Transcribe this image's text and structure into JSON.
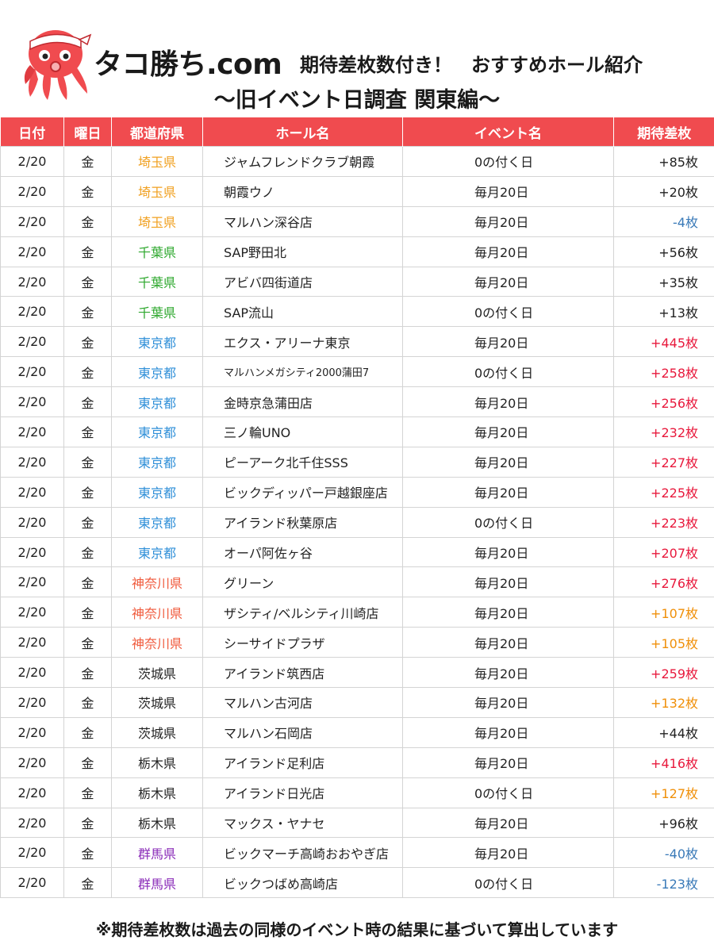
{
  "colors": {
    "header_bg": "#f04b4f",
    "pref_saitama": "#f0a020",
    "pref_chiba": "#2ea82e",
    "pref_tokyo": "#2f8fd8",
    "pref_kanagawa": "#f05a3c",
    "pref_default": "#222222",
    "pref_gunma": "#8a2bb8",
    "value_high": "#e8193c",
    "value_mid": "#f0900a",
    "value_normal": "#222222",
    "value_negative": "#3a7ab8"
  },
  "header": {
    "brand": "タコ勝ち.com",
    "headline": "期待差枚数付き！　おすすめホール紹介",
    "subtitle": "〜旧イベント日調査 関東編〜"
  },
  "table": {
    "columns": [
      "日付",
      "曜日",
      "都道府県",
      "ホール名",
      "イベント名",
      "期待差枚"
    ],
    "rows": [
      {
        "date": "2/20",
        "day": "金",
        "pref": "埼玉県",
        "pref_color": "saitama",
        "hall": "ジャムフレンドクラブ朝霞",
        "event": "0の付く日",
        "value": "+85枚",
        "value_color": "normal"
      },
      {
        "date": "2/20",
        "day": "金",
        "pref": "埼玉県",
        "pref_color": "saitama",
        "hall": "朝霞ウノ",
        "event": "毎月20日",
        "value": "+20枚",
        "value_color": "normal"
      },
      {
        "date": "2/20",
        "day": "金",
        "pref": "埼玉県",
        "pref_color": "saitama",
        "hall": "マルハン深谷店",
        "event": "毎月20日",
        "value": "-4枚",
        "value_color": "negative"
      },
      {
        "date": "2/20",
        "day": "金",
        "pref": "千葉県",
        "pref_color": "chiba",
        "hall": "SAP野田北",
        "event": "毎月20日",
        "value": "+56枚",
        "value_color": "normal"
      },
      {
        "date": "2/20",
        "day": "金",
        "pref": "千葉県",
        "pref_color": "chiba",
        "hall": "アビバ四街道店",
        "event": "毎月20日",
        "value": "+35枚",
        "value_color": "normal"
      },
      {
        "date": "2/20",
        "day": "金",
        "pref": "千葉県",
        "pref_color": "chiba",
        "hall": "SAP流山",
        "event": "0の付く日",
        "value": "+13枚",
        "value_color": "normal"
      },
      {
        "date": "2/20",
        "day": "金",
        "pref": "東京都",
        "pref_color": "tokyo",
        "hall": "エクス・アリーナ東京",
        "event": "毎月20日",
        "value": "+445枚",
        "value_color": "high"
      },
      {
        "date": "2/20",
        "day": "金",
        "pref": "東京都",
        "pref_color": "tokyo",
        "hall": "マルハンメガシティ2000蒲田7",
        "event": "0の付く日",
        "value": "+258枚",
        "value_color": "high",
        "small": true
      },
      {
        "date": "2/20",
        "day": "金",
        "pref": "東京都",
        "pref_color": "tokyo",
        "hall": "金時京急蒲田店",
        "event": "毎月20日",
        "value": "+256枚",
        "value_color": "high"
      },
      {
        "date": "2/20",
        "day": "金",
        "pref": "東京都",
        "pref_color": "tokyo",
        "hall": "三ノ輪UNO",
        "event": "毎月20日",
        "value": "+232枚",
        "value_color": "high"
      },
      {
        "date": "2/20",
        "day": "金",
        "pref": "東京都",
        "pref_color": "tokyo",
        "hall": "ピーアーク北千住SSS",
        "event": "毎月20日",
        "value": "+227枚",
        "value_color": "high"
      },
      {
        "date": "2/20",
        "day": "金",
        "pref": "東京都",
        "pref_color": "tokyo",
        "hall": "ビックディッパー戸越銀座店",
        "event": "毎月20日",
        "value": "+225枚",
        "value_color": "high"
      },
      {
        "date": "2/20",
        "day": "金",
        "pref": "東京都",
        "pref_color": "tokyo",
        "hall": "アイランド秋葉原店",
        "event": "0の付く日",
        "value": "+223枚",
        "value_color": "high"
      },
      {
        "date": "2/20",
        "day": "金",
        "pref": "東京都",
        "pref_color": "tokyo",
        "hall": "オーパ阿佐ヶ谷",
        "event": "毎月20日",
        "value": "+207枚",
        "value_color": "high"
      },
      {
        "date": "2/20",
        "day": "金",
        "pref": "神奈川県",
        "pref_color": "kanagawa",
        "hall": "グリーン",
        "event": "毎月20日",
        "value": "+276枚",
        "value_color": "high"
      },
      {
        "date": "2/20",
        "day": "金",
        "pref": "神奈川県",
        "pref_color": "kanagawa",
        "hall": "ザシティ/ベルシティ川崎店",
        "event": "毎月20日",
        "value": "+107枚",
        "value_color": "mid"
      },
      {
        "date": "2/20",
        "day": "金",
        "pref": "神奈川県",
        "pref_color": "kanagawa",
        "hall": "シーサイドプラザ",
        "event": "毎月20日",
        "value": "+105枚",
        "value_color": "mid"
      },
      {
        "date": "2/20",
        "day": "金",
        "pref": "茨城県",
        "pref_color": "default",
        "hall": "アイランド筑西店",
        "event": "毎月20日",
        "value": "+259枚",
        "value_color": "high"
      },
      {
        "date": "2/20",
        "day": "金",
        "pref": "茨城県",
        "pref_color": "default",
        "hall": "マルハン古河店",
        "event": "毎月20日",
        "value": "+132枚",
        "value_color": "mid"
      },
      {
        "date": "2/20",
        "day": "金",
        "pref": "茨城県",
        "pref_color": "default",
        "hall": "マルハン石岡店",
        "event": "毎月20日",
        "value": "+44枚",
        "value_color": "normal"
      },
      {
        "date": "2/20",
        "day": "金",
        "pref": "栃木県",
        "pref_color": "default",
        "hall": "アイランド足利店",
        "event": "毎月20日",
        "value": "+416枚",
        "value_color": "high"
      },
      {
        "date": "2/20",
        "day": "金",
        "pref": "栃木県",
        "pref_color": "default",
        "hall": "アイランド日光店",
        "event": "0の付く日",
        "value": "+127枚",
        "value_color": "mid"
      },
      {
        "date": "2/20",
        "day": "金",
        "pref": "栃木県",
        "pref_color": "default",
        "hall": "マックス・ヤナセ",
        "event": "毎月20日",
        "value": "+96枚",
        "value_color": "normal"
      },
      {
        "date": "2/20",
        "day": "金",
        "pref": "群馬県",
        "pref_color": "gunma",
        "hall": "ビックマーチ高崎おおやぎ店",
        "event": "毎月20日",
        "value": "-40枚",
        "value_color": "negative"
      },
      {
        "date": "2/20",
        "day": "金",
        "pref": "群馬県",
        "pref_color": "gunma",
        "hall": "ビックつばめ高崎店",
        "event": "0の付く日",
        "value": "-123枚",
        "value_color": "negative"
      }
    ]
  },
  "footnote": "※期待差枚数は過去の同様のイベント時の結果に基づいて算出しています",
  "icons": {
    "logo": "octopus-mascot-icon"
  }
}
